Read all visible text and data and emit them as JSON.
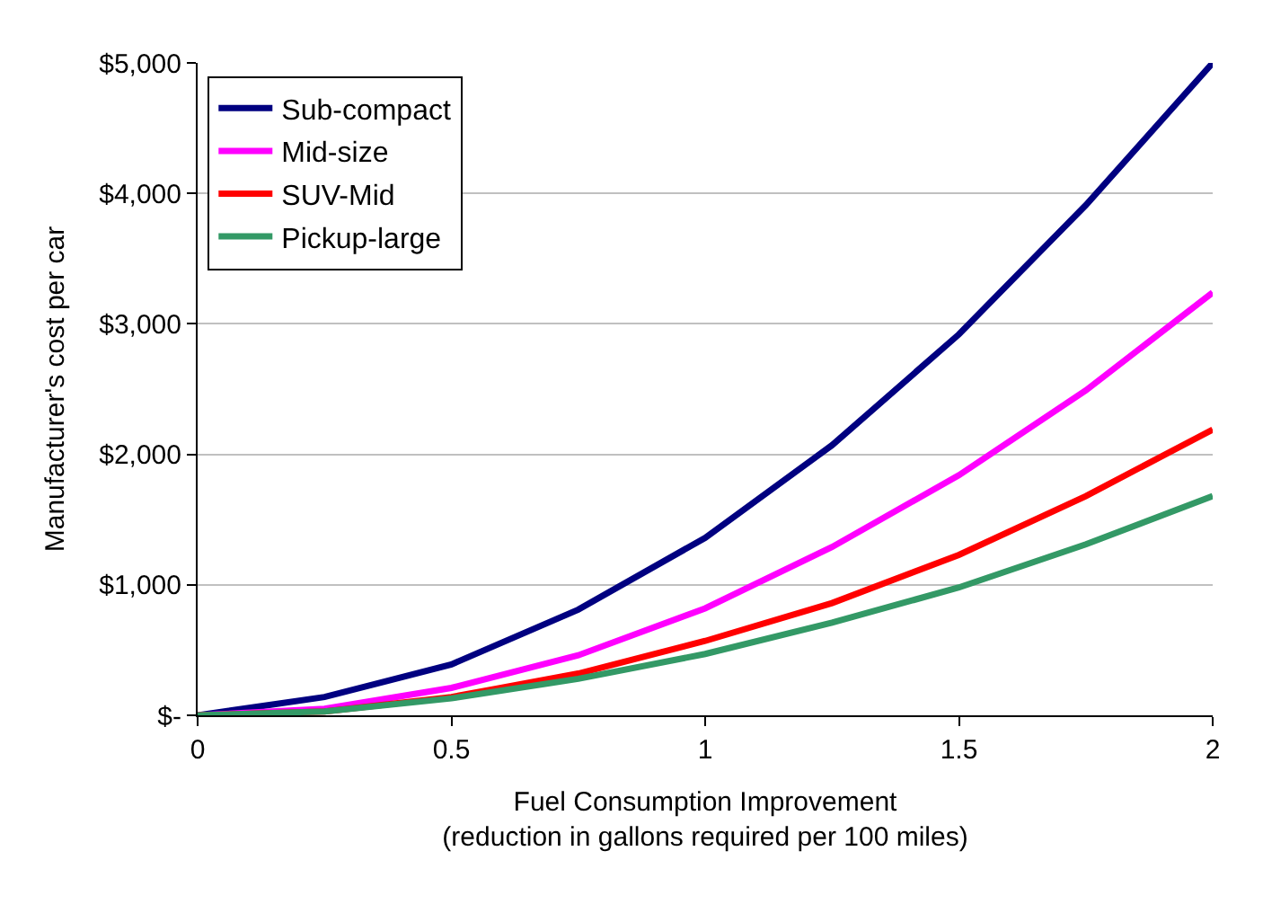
{
  "chart_data": {
    "type": "line",
    "xlabel": "Fuel Consumption Improvement\n(reduction in gallons required per 100 miles)",
    "ylabel": "Manufacturer's cost per car",
    "x": [
      0,
      0.25,
      0.5,
      0.75,
      1,
      1.25,
      1.5,
      1.75,
      2
    ],
    "series": [
      {
        "name": "Sub-compact",
        "color": "#000080",
        "values": [
          0,
          140,
          390,
          810,
          1360,
          2070,
          2920,
          3910,
          5000
        ]
      },
      {
        "name": "Mid-size",
        "color": "#ff00ff",
        "values": [
          0,
          50,
          210,
          460,
          820,
          1290,
          1840,
          2490,
          3240
        ]
      },
      {
        "name": "SUV-Mid",
        "color": "#ff0000",
        "values": [
          0,
          30,
          140,
          320,
          570,
          860,
          1230,
          1680,
          2190
        ]
      },
      {
        "name": "Pickup-large",
        "color": "#339966",
        "values": [
          0,
          30,
          130,
          280,
          470,
          710,
          980,
          1310,
          1680
        ]
      }
    ],
    "xlim": [
      0,
      2
    ],
    "xticks": [
      0,
      0.5,
      1,
      1.5,
      2
    ],
    "ylim": [
      0,
      5000
    ],
    "yticks": [
      {
        "value": 0,
        "label": "$-"
      },
      {
        "value": 1000,
        "label": "$1,000"
      },
      {
        "value": 2000,
        "label": "$2,000"
      },
      {
        "value": 3000,
        "label": "$3,000"
      },
      {
        "value": 4000,
        "label": "$4,000"
      },
      {
        "value": 5000,
        "label": "$5,000"
      }
    ],
    "grid": "y",
    "legend": "top left",
    "marker": "none",
    "line_style": "solid"
  }
}
